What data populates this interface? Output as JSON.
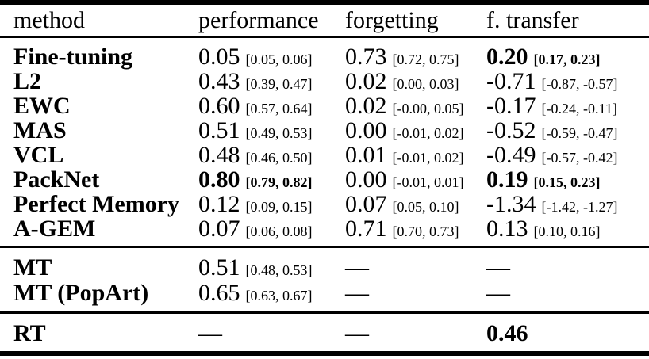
{
  "colors": {
    "text": "#000000",
    "background": "#ffffff"
  },
  "table": {
    "header": {
      "method": "method",
      "performance": "performance",
      "forgetting": "forgetting",
      "transfer": "f. transfer"
    },
    "sections": [
      {
        "rows": [
          {
            "method": "Fine-tuning",
            "performance": {
              "value": "0.05",
              "ci": "[0.05, 0.06]"
            },
            "forgetting": {
              "value": "0.73",
              "ci": "[0.72, 0.75]"
            },
            "transfer": {
              "value": "0.20",
              "ci": "[0.17, 0.23]"
            }
          },
          {
            "method": "L2",
            "performance": {
              "value": "0.43",
              "ci": "[0.39, 0.47]"
            },
            "forgetting": {
              "value": "0.02",
              "ci": "[0.00, 0.03]"
            },
            "transfer": {
              "value": "-0.71",
              "ci": "[-0.87, -0.57]"
            }
          },
          {
            "method": "EWC",
            "performance": {
              "value": "0.60",
              "ci": "[0.57, 0.64]"
            },
            "forgetting": {
              "value": "0.02",
              "ci": "[-0.00, 0.05]"
            },
            "transfer": {
              "value": "-0.17",
              "ci": "[-0.24, -0.11]"
            }
          },
          {
            "method": "MAS",
            "performance": {
              "value": "0.51",
              "ci": "[0.49, 0.53]"
            },
            "forgetting": {
              "value": "0.00",
              "ci": "[-0.01, 0.02]"
            },
            "transfer": {
              "value": "-0.52",
              "ci": "[-0.59, -0.47]"
            }
          },
          {
            "method": "VCL",
            "performance": {
              "value": "0.48",
              "ci": "[0.46, 0.50]"
            },
            "forgetting": {
              "value": "0.01",
              "ci": "[-0.01, 0.02]"
            },
            "transfer": {
              "value": "-0.49",
              "ci": "[-0.57, -0.42]"
            }
          },
          {
            "method": "PackNet",
            "performance": {
              "value": "0.80",
              "ci": "[0.79, 0.82]"
            },
            "forgetting": {
              "value": "0.00",
              "ci": "[-0.01, 0.01]"
            },
            "transfer": {
              "value": "0.19",
              "ci": "[0.15, 0.23]"
            }
          },
          {
            "method": "Perfect Memory",
            "performance": {
              "value": "0.12",
              "ci": "[0.09, 0.15]"
            },
            "forgetting": {
              "value": "0.07",
              "ci": "[0.05, 0.10]"
            },
            "transfer": {
              "value": "-1.34",
              "ci": "[-1.42, -1.27]"
            }
          },
          {
            "method": "A-GEM",
            "performance": {
              "value": "0.07",
              "ci": "[0.06, 0.08]"
            },
            "forgetting": {
              "value": "0.71",
              "ci": "[0.70, 0.73]"
            },
            "transfer": {
              "value": "0.13",
              "ci": "[0.10, 0.16]"
            }
          }
        ]
      },
      {
        "rows": [
          {
            "method": "MT",
            "performance": {
              "value": "0.51",
              "ci": "[0.48, 0.53]"
            },
            "forgetting": {
              "value": "—",
              "ci": ""
            },
            "transfer": {
              "value": "—",
              "ci": ""
            }
          },
          {
            "method": "MT (PopArt)",
            "performance": {
              "value": "0.65",
              "ci": "[0.63, 0.67]"
            },
            "forgetting": {
              "value": "—",
              "ci": ""
            },
            "transfer": {
              "value": "—",
              "ci": ""
            }
          }
        ]
      },
      {
        "rows": [
          {
            "method": "RT",
            "performance": {
              "value": "—",
              "ci": ""
            },
            "forgetting": {
              "value": "—",
              "ci": ""
            },
            "transfer": {
              "value": "0.46",
              "ci": ""
            }
          }
        ]
      }
    ]
  }
}
